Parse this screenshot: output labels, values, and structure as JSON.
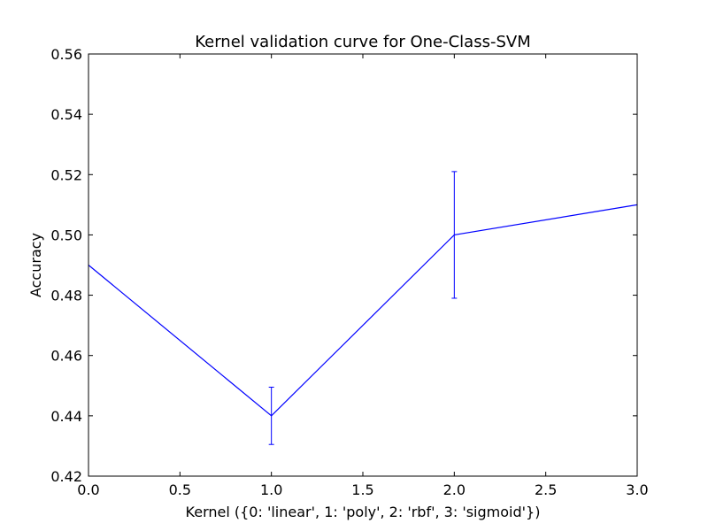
{
  "chart_data": {
    "type": "line",
    "title": "Kernel validation curve for One-Class-SVM",
    "xlabel": "Kernel ({0: 'linear', 1: 'poly', 2: 'rbf', 3: 'sigmoid'})",
    "ylabel": "Accuracy",
    "xlim": [
      0.0,
      3.0
    ],
    "ylim": [
      0.42,
      0.56
    ],
    "xticks": [
      0.0,
      0.5,
      1.0,
      1.5,
      2.0,
      2.5,
      3.0
    ],
    "xtick_labels": [
      "0.0",
      "0.5",
      "1.0",
      "1.5",
      "2.0",
      "2.5",
      "3.0"
    ],
    "yticks": [
      0.42,
      0.44,
      0.46,
      0.48,
      0.5,
      0.52,
      0.54,
      0.56
    ],
    "ytick_labels": [
      "0.42",
      "0.44",
      "0.46",
      "0.48",
      "0.50",
      "0.52",
      "0.54",
      "0.56"
    ],
    "grid": false,
    "series": [
      {
        "x": [
          0,
          1,
          2,
          3
        ],
        "y": [
          0.49,
          0.44,
          0.5,
          0.51
        ],
        "yerr": [
          0.0,
          0.0095,
          0.021,
          0.0
        ],
        "color": "#0000ff"
      }
    ]
  }
}
